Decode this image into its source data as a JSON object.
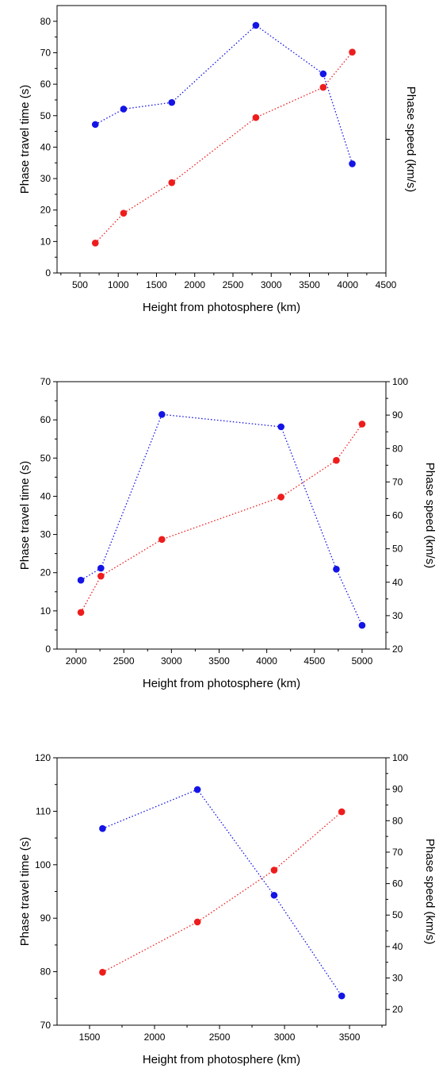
{
  "colors": {
    "red_series": "#ee1c1c",
    "blue_series": "#1414e6",
    "axis": "#000000"
  },
  "chart_data": [
    {
      "type": "line",
      "line_style": "dotted",
      "grid": false,
      "xlabel": "Height from photosphere (km)",
      "ylabel": "Phase travel time (s)",
      "y2label": "Phase speed (km/s)",
      "xlim": [
        200,
        4500
      ],
      "ylim": [
        0,
        85
      ],
      "x_ticks": [
        500,
        1000,
        1500,
        2000,
        2500,
        3000,
        3500,
        4000,
        4500
      ],
      "y_ticks": [
        0,
        10,
        20,
        30,
        40,
        50,
        60,
        70,
        80
      ],
      "series": [
        {
          "color": "#ee1c1c",
          "axis": "left",
          "x": [
            700,
            1070,
            1700,
            2800,
            3680,
            4060
          ],
          "values": [
            9.5,
            19,
            28.7,
            49.4,
            59,
            70.2
          ]
        },
        {
          "color": "#1414e6",
          "axis": "left",
          "x": [
            700,
            1070,
            1700,
            2800,
            3680,
            4060
          ],
          "values": [
            47.2,
            52.1,
            54.2,
            78.7,
            63.3,
            34.7
          ]
        }
      ]
    },
    {
      "type": "line",
      "line_style": "dotted",
      "grid": false,
      "xlabel": "Height from photosphere (km)",
      "ylabel": "Phase travel time (s)",
      "y2label": "Phase speed (km/s)",
      "xlim": [
        1800,
        5250
      ],
      "ylim": [
        0,
        70
      ],
      "y2lim": [
        20,
        100
      ],
      "x_ticks": [
        2000,
        2500,
        3000,
        3500,
        4000,
        4500,
        5000
      ],
      "y_ticks": [
        0,
        10,
        20,
        30,
        40,
        50,
        60,
        70
      ],
      "y2_ticks": [
        20,
        30,
        40,
        50,
        60,
        70,
        80,
        90,
        100
      ],
      "series": [
        {
          "color": "#ee1c1c",
          "axis": "left",
          "x": [
            2050,
            2260,
            2900,
            4150,
            4730,
            5000
          ],
          "values": [
            9.6,
            19.1,
            28.7,
            39.8,
            49.4,
            58.9
          ]
        },
        {
          "color": "#1414e6",
          "axis": "right",
          "x": [
            2050,
            2260,
            2900,
            4150,
            4730,
            5000
          ],
          "values": [
            40.6,
            44.2,
            90.2,
            86.5,
            43.9,
            27.1
          ]
        }
      ]
    },
    {
      "type": "line",
      "line_style": "dotted",
      "grid": false,
      "xlabel": "Height from photosphere (km)",
      "ylabel": "Phase travel time (s)",
      "y2label": "Phase speed (km/s)",
      "xlim": [
        1250,
        3780
      ],
      "ylim": [
        70,
        120
      ],
      "y2lim": [
        15,
        100
      ],
      "x_ticks": [
        1500,
        2000,
        2500,
        3000,
        3500
      ],
      "y_ticks": [
        70,
        80,
        90,
        100,
        110,
        120
      ],
      "y2_ticks": [
        20,
        30,
        40,
        50,
        60,
        70,
        80,
        90,
        100
      ],
      "series": [
        {
          "color": "#ee1c1c",
          "axis": "left",
          "x": [
            1600,
            2330,
            2920,
            3440
          ],
          "values": [
            79.9,
            89.3,
            99,
            109.9
          ]
        },
        {
          "color": "#1414e6",
          "axis": "right",
          "x": [
            1600,
            2330,
            2920,
            3440
          ],
          "values": [
            77.5,
            89.9,
            56.3,
            24.3
          ]
        }
      ]
    }
  ]
}
